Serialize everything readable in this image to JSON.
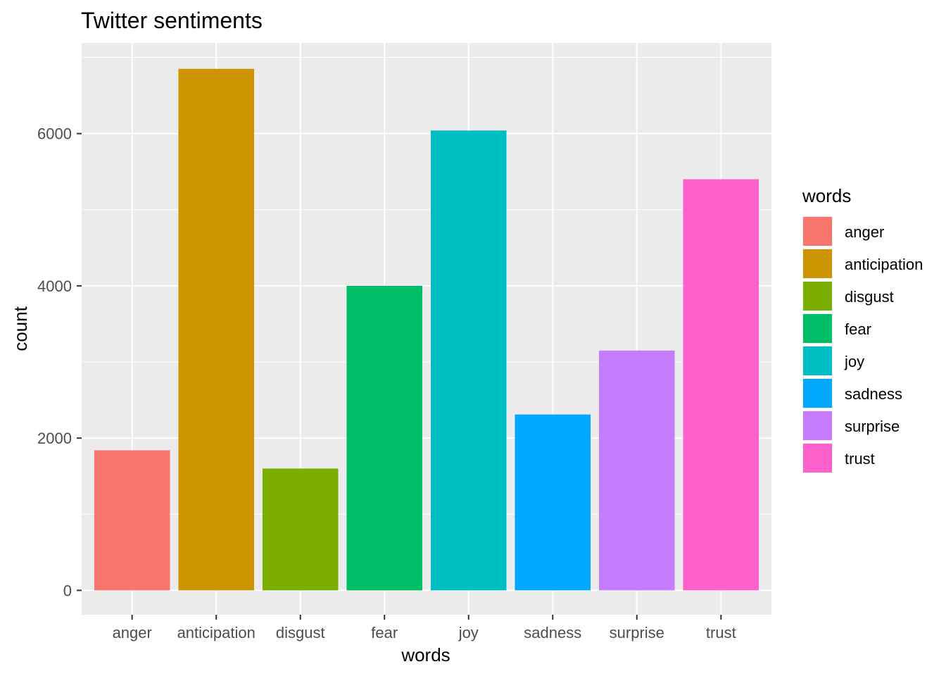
{
  "chart_data": {
    "type": "bar",
    "title": "Twitter sentiments",
    "xlabel": "words",
    "ylabel": "count",
    "categories": [
      "anger",
      "anticipation",
      "disgust",
      "fear",
      "joy",
      "sadness",
      "surprise",
      "trust"
    ],
    "values": [
      1840,
      6850,
      1600,
      4000,
      6040,
      2310,
      3150,
      5400
    ],
    "colors": [
      "#F8766D",
      "#CD9600",
      "#7CAE00",
      "#00BE67",
      "#00BFC4",
      "#00A9FF",
      "#C77CFF",
      "#FF61CC"
    ],
    "ylim": [
      -320,
      7190
    ],
    "yticks": [
      0,
      2000,
      4000,
      6000
    ],
    "yticks_minor": [
      1000,
      3000,
      5000,
      7000
    ],
    "grid": true,
    "legend": {
      "title": "words",
      "position": "right"
    }
  }
}
